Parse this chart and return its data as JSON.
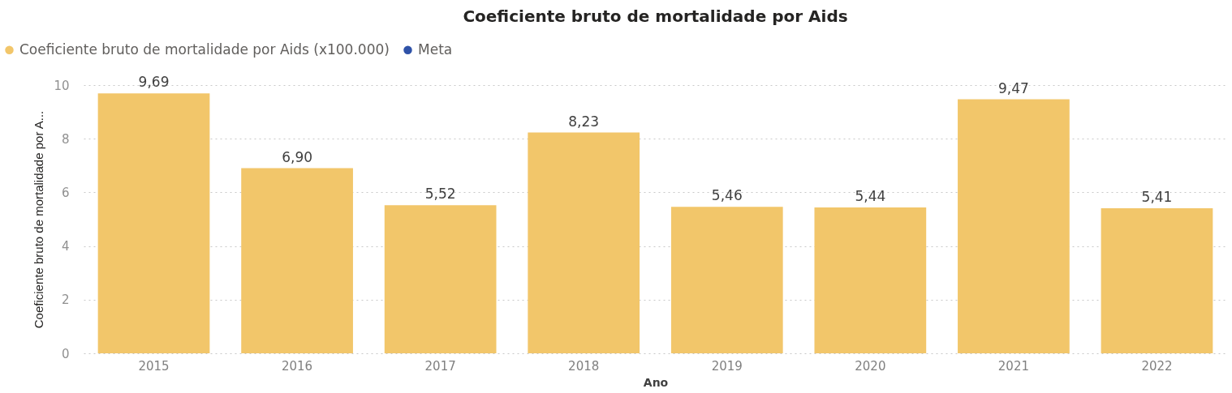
{
  "chart_data": {
    "type": "bar",
    "title": "Coeficiente bruto de mortalidade por Aids",
    "xlabel": "Ano",
    "ylabel": "Coeficiente bruto de mortalidade por A...",
    "categories": [
      "2015",
      "2016",
      "2017",
      "2018",
      "2019",
      "2020",
      "2021",
      "2022"
    ],
    "series": [
      {
        "name": "Coeficiente bruto de mortalidade por Aids (x100.000)",
        "color": "#f2c66a",
        "values": [
          9.69,
          6.9,
          5.52,
          8.23,
          5.46,
          5.44,
          9.47,
          5.41
        ],
        "value_labels": [
          "9,69",
          "6,90",
          "5,52",
          "8,23",
          "5,46",
          "5,44",
          "9,47",
          "5,41"
        ]
      },
      {
        "name": "Meta",
        "color": "#2f52a8",
        "values": [
          null,
          null,
          null,
          null,
          null,
          null,
          null,
          null
        ]
      }
    ],
    "ylim": [
      0,
      10
    ],
    "yticks": [
      0,
      2,
      4,
      6,
      8,
      10
    ],
    "grid": "y",
    "legend": "top left"
  }
}
